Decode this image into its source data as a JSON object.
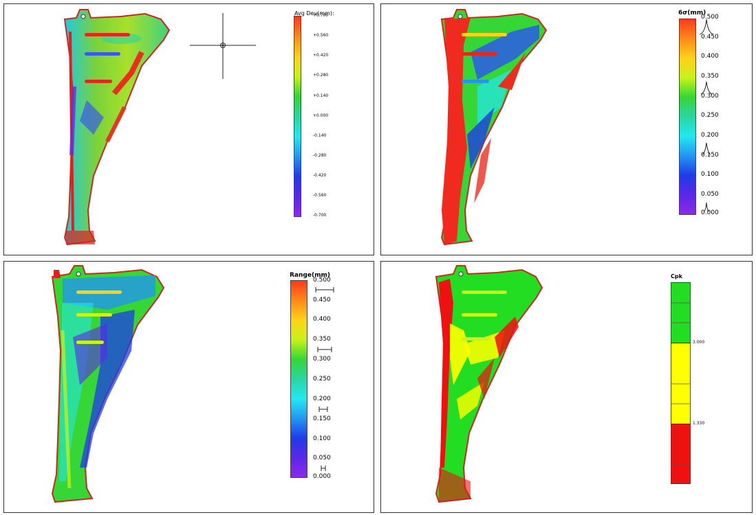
{
  "panels": [
    {
      "id": "avg-dev",
      "legend_title": "Avg Dev(mm):",
      "ticks": [
        "+0.700",
        "+0.560",
        "+0.420",
        "+0.280",
        "+0.140",
        "+0.000",
        "-0.140",
        "-0.280",
        "-0.420",
        "-0.560",
        "-0.700"
      ]
    },
    {
      "id": "six-sigma",
      "legend_title": "6σ(mm)",
      "ticks": [
        "0.500",
        "0.450",
        "0.400",
        "0.350",
        "0.300",
        "0.250",
        "0.200",
        "0.150",
        "0.100",
        "0.050",
        "0.000"
      ]
    },
    {
      "id": "range",
      "legend_title": "Range(mm)",
      "ticks": [
        "0.500",
        "0.450",
        "0.400",
        "0.350",
        "0.300",
        "0.250",
        "0.200",
        "0.150",
        "0.100",
        "0.050",
        "0.000"
      ]
    },
    {
      "id": "cpk",
      "legend_title": "Cpk",
      "ticks": [
        "3.000",
        "1.330"
      ],
      "band_colors": [
        "#22dd22",
        "#ffff00",
        "#ee1111"
      ]
    }
  ],
  "colors": {
    "rainbow": [
      "#ff3a1a",
      "#ff8a1a",
      "#ffd21a",
      "#c8f21a",
      "#36d636",
      "#2ad6a0",
      "#24e8f0",
      "#2496f0",
      "#1e3ce8",
      "#5a28e8",
      "#8a2ae8"
    ]
  }
}
